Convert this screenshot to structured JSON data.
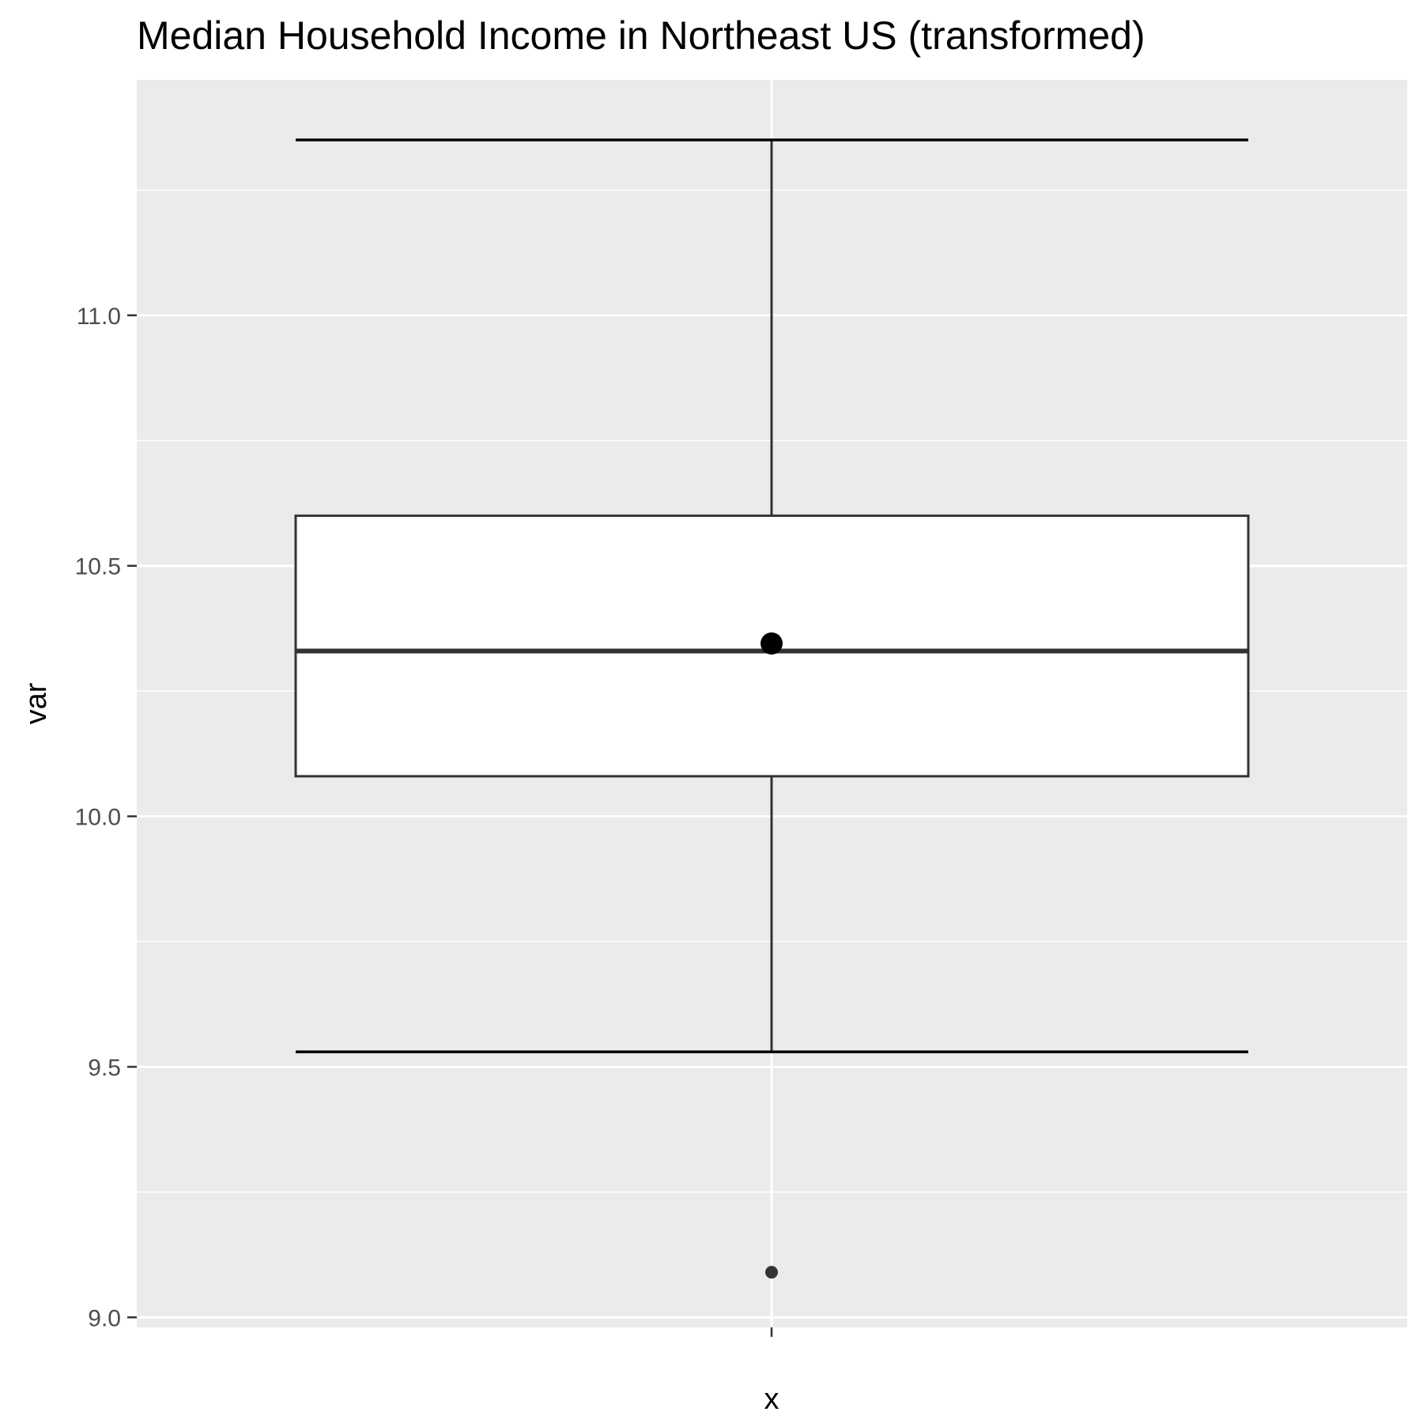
{
  "chart_data": {
    "type": "boxplot",
    "title": "Median Household Income in Northeast US (transformed)",
    "xlabel": "x",
    "ylabel": "var",
    "ylim": [
      8.98,
      11.47
    ],
    "yticks": [
      9.0,
      9.5,
      10.0,
      10.5,
      11.0
    ],
    "ytick_labels": [
      "9.0",
      "9.5",
      "10.0",
      "10.5",
      "11.0"
    ],
    "minor_yticks": [
      9.25,
      9.75,
      10.25,
      10.75,
      11.25
    ],
    "grid": true,
    "box": {
      "whisker_low": 9.53,
      "q1": 10.08,
      "median": 10.33,
      "q3": 10.6,
      "whisker_high": 11.35,
      "mean": 10.345,
      "outliers": [
        9.09
      ]
    },
    "colors": {
      "panel": "#ebebeb",
      "grid": "#ffffff",
      "box_fill": "#ffffff",
      "box_stroke": "#333333",
      "mean_point": "#000000",
      "outlier": "#333333"
    }
  }
}
